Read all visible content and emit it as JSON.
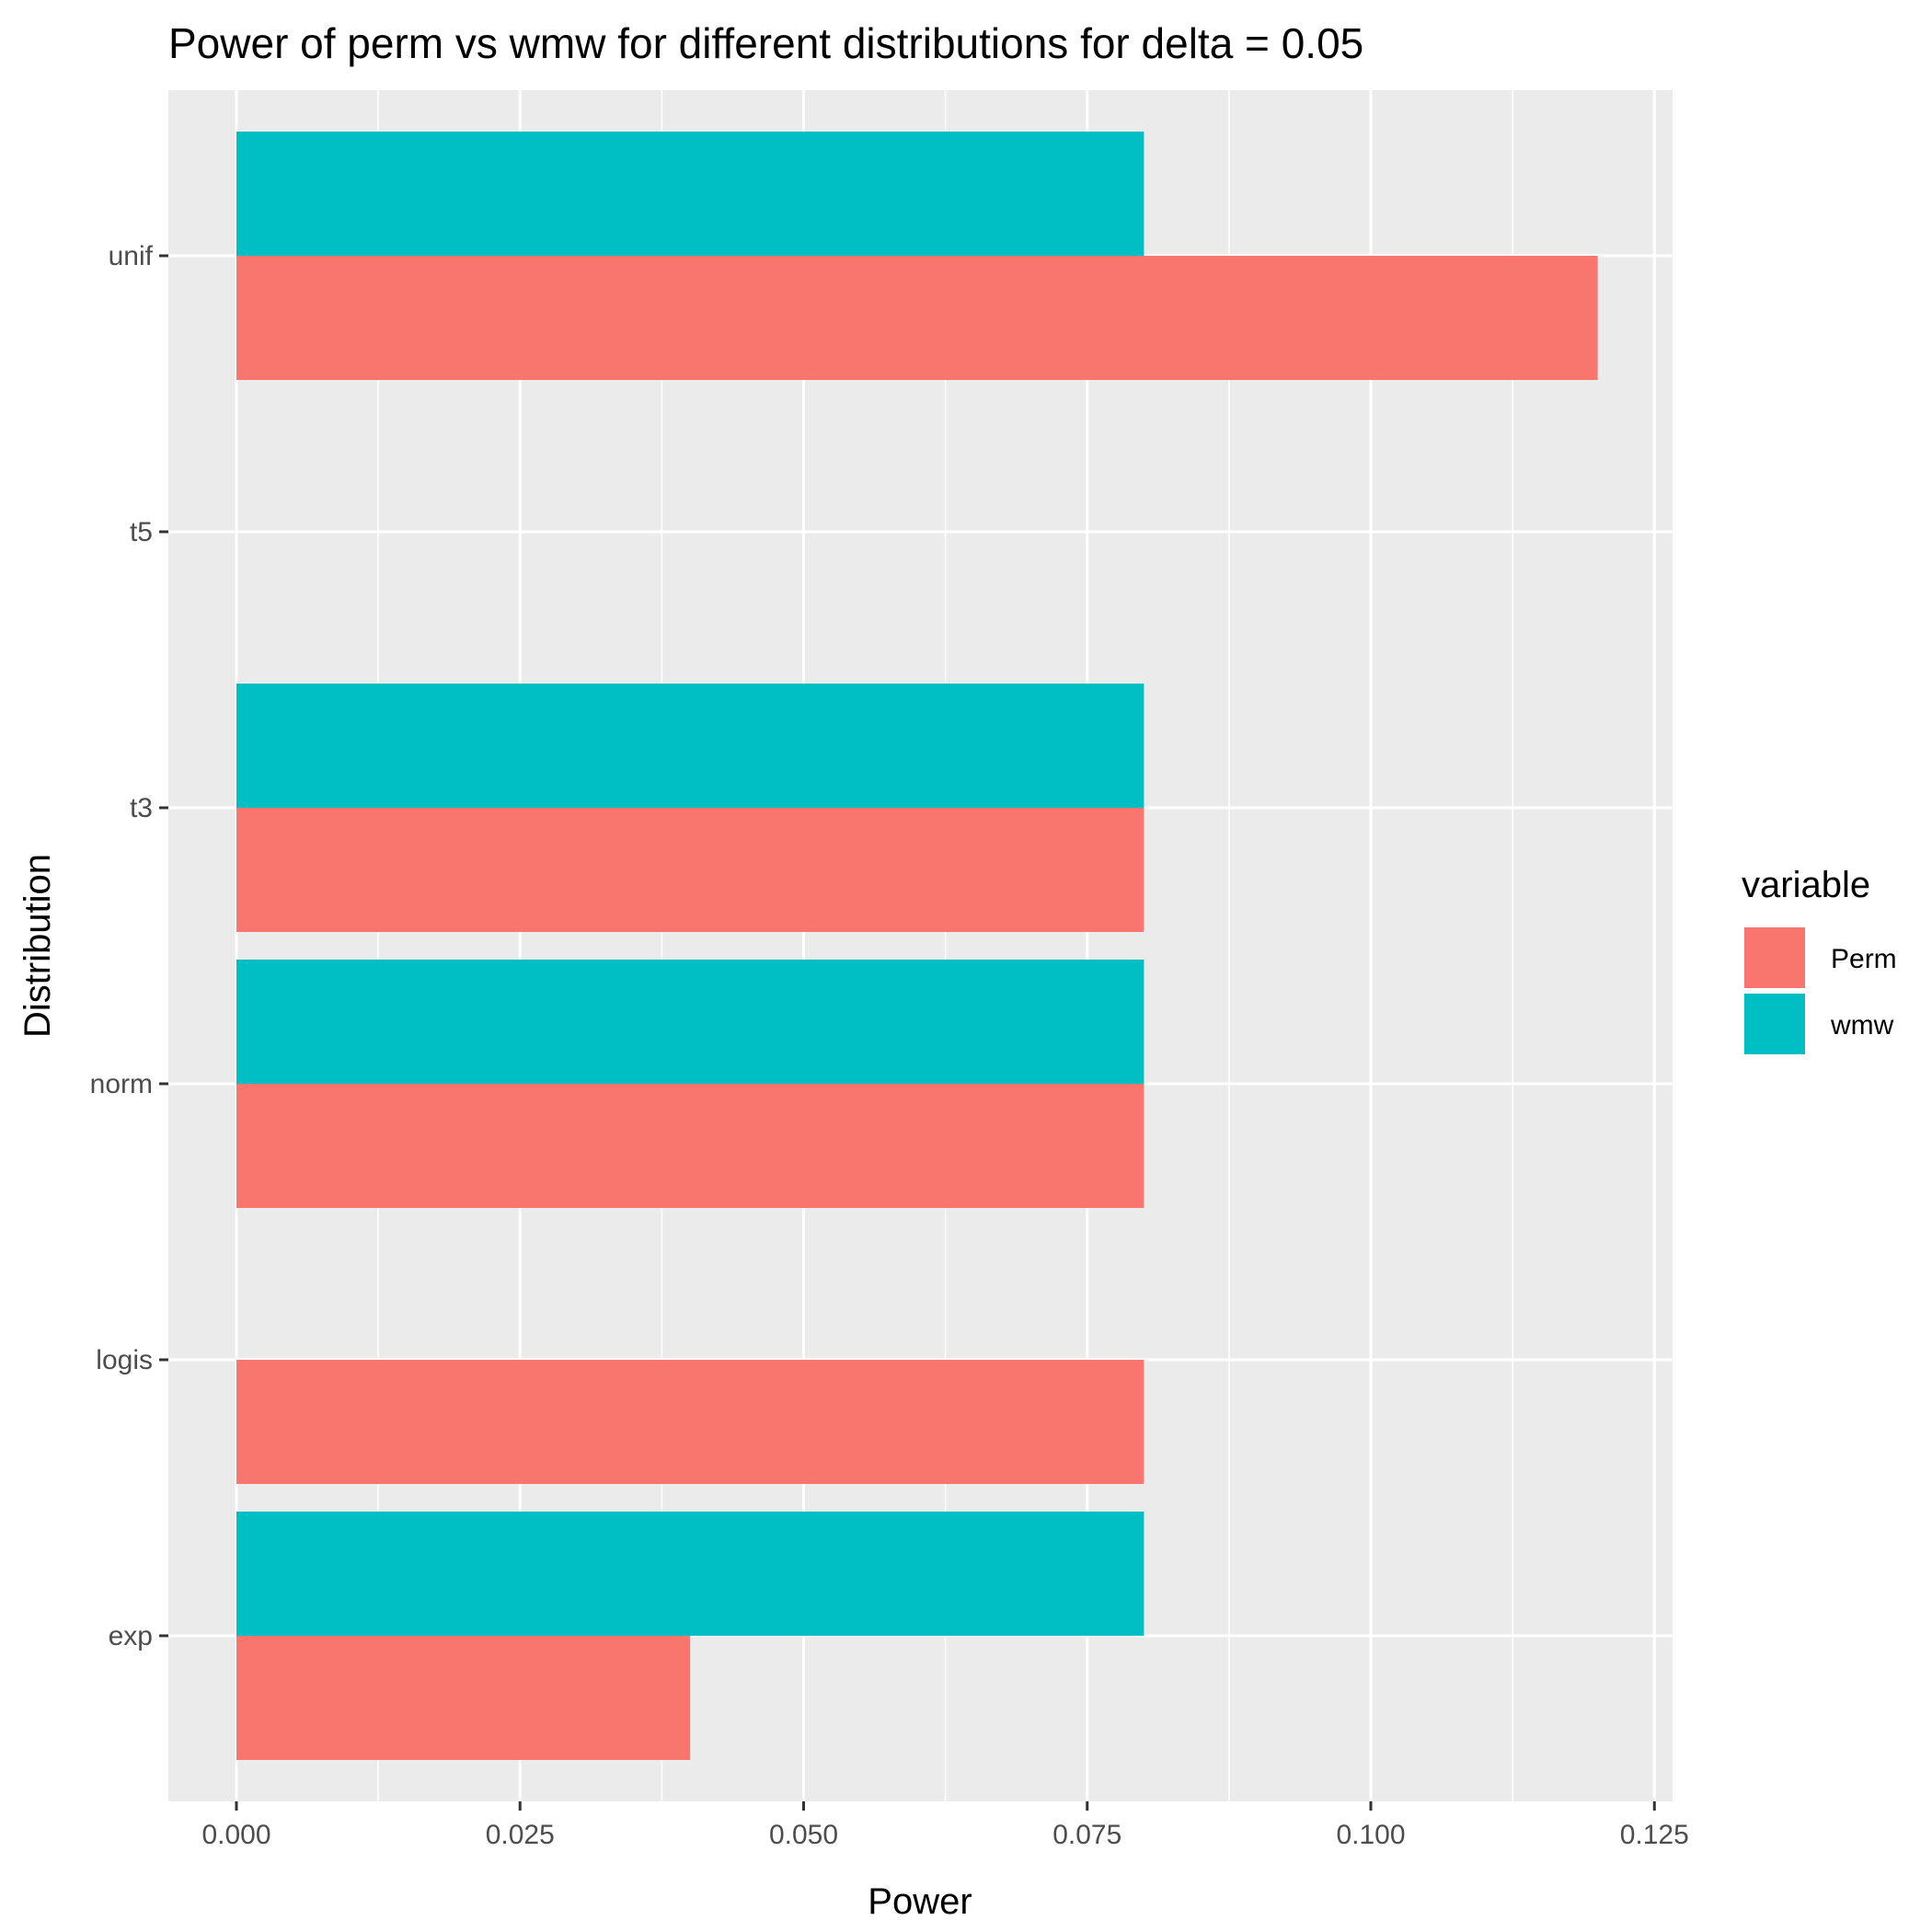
{
  "chart_data": {
    "type": "bar",
    "orientation": "horizontal",
    "title": "Power of perm vs wmw for different distributions for delta =  0.05",
    "xlabel": "Power",
    "ylabel": "Distribution",
    "categories": [
      "exp",
      "logis",
      "norm",
      "t3",
      "t5",
      "unif"
    ],
    "series": [
      {
        "name": "Perm",
        "color": "#F8766D",
        "values": [
          0.04,
          0.08,
          0.08,
          0.08,
          null,
          0.12
        ]
      },
      {
        "name": "wmw",
        "color": "#00BFC4",
        "values": [
          0.08,
          null,
          0.08,
          0.08,
          null,
          0.08
        ]
      }
    ],
    "xlim": [
      -0.006,
      0.1266
    ],
    "xticks": [
      0.0,
      0.025,
      0.05,
      0.075,
      0.1,
      0.125
    ],
    "xtick_labels": [
      "0.000",
      "0.025",
      "0.050",
      "0.075",
      "0.100",
      "0.125"
    ],
    "grid": true,
    "panel_background": "#EBEBEB",
    "legend": {
      "title": "variable",
      "position": "right",
      "entries": [
        {
          "label": "Perm",
          "color": "#F8766D"
        },
        {
          "label": "wmw",
          "color": "#00BFC4"
        }
      ]
    }
  }
}
